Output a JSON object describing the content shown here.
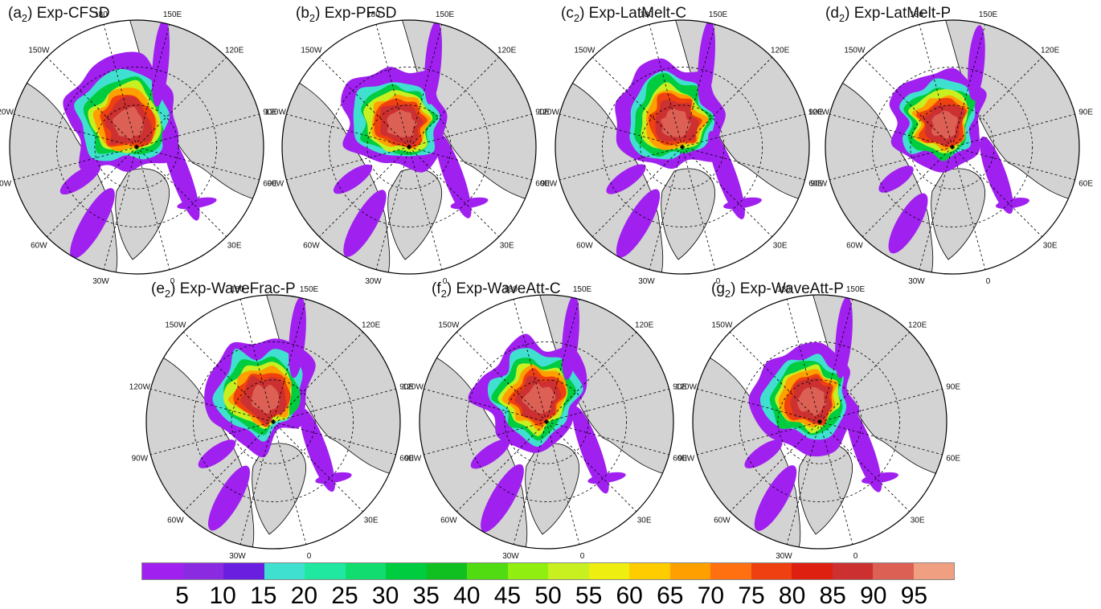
{
  "panels": [
    {
      "id": "a",
      "label": "(a",
      "sub": "2",
      "name": ") Exp-CFSD",
      "profile": 1.0
    },
    {
      "id": "b",
      "label": "(b",
      "sub": "2",
      "name": ") Exp-PFSD",
      "profile": 0.95
    },
    {
      "id": "c",
      "label": "(c",
      "sub": "2",
      "name": ") Exp-LatMelt-C",
      "profile": 0.97
    },
    {
      "id": "d",
      "label": "(d",
      "sub": "2",
      "name": ") Exp-LatMelt-P",
      "profile": 0.85
    },
    {
      "id": "e",
      "label": "(e",
      "sub": "2",
      "name": ") Exp-WaveFrac-P",
      "profile": 0.92
    },
    {
      "id": "f",
      "label": "(f",
      "sub": "2",
      "name": ") Exp-WaveAtt-C",
      "profile": 0.96
    },
    {
      "id": "g",
      "label": "(g",
      "sub": "2",
      "name": ") Exp-WaveAtt-P",
      "profile": 0.93
    }
  ],
  "longitude_labels": [
    "150E",
    "120E",
    "90E",
    "60E",
    "30E",
    "0",
    "30W",
    "60W",
    "90W",
    "120W",
    "150W",
    "180"
  ],
  "colorbar": {
    "ticks": [
      "5",
      "10",
      "15",
      "20",
      "25",
      "30",
      "35",
      "40",
      "45",
      "50",
      "55",
      "60",
      "65",
      "70",
      "75",
      "80",
      "85",
      "90",
      "95"
    ],
    "colors": [
      "#a020f0",
      "#8a2be2",
      "#6a1fe0",
      "#40e0d0",
      "#20e8a0",
      "#10dc70",
      "#00cc40",
      "#10c020",
      "#50dc10",
      "#90ee10",
      "#c8f020",
      "#eeee10",
      "#ffcc00",
      "#ffa000",
      "#ff7010",
      "#ee4010",
      "#dd2010",
      "#cc3030",
      "#dd6055",
      "#f0a080"
    ]
  }
}
